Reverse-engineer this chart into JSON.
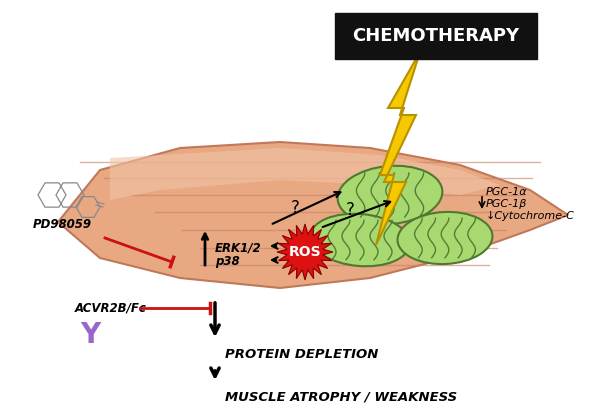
{
  "bg_color": "#ffffff",
  "muscle_color": "#e8a882",
  "muscle_edge_color": "#c07858",
  "muscle_highlight_color": "#f2c4a8",
  "muscle_dark_color": "#c88060",
  "mito_outer_color": "#a8d870",
  "mito_inner_color": "#88b850",
  "mito_crista_color": "#507830",
  "ros_color": "#dd1111",
  "ros_text_color": "#ffffff",
  "chemo_box_color": "#111111",
  "chemo_text_color": "#ffffff",
  "lightning_fill": "#f5c800",
  "lightning_edge": "#b89000",
  "arrow_color": "#111111",
  "red_color": "#cc1111",
  "purple_color": "#9966cc",
  "title": "CHEMOTHERAPY",
  "label_pgc1": "PGC-1α",
  "label_pgc2": "PGC-1β",
  "label_pgc3": "↓Cytochrome-C",
  "label_erk": "ERK1/2",
  "label_p38": "p38",
  "label_ros": "ROS",
  "label_pd": "PD98059",
  "label_acvr": "ACVR2B/Fc",
  "label_protein": "PROTEIN DEPLETION",
  "label_muscle": "MUSCLE ATROPHY / WEAKNESS"
}
